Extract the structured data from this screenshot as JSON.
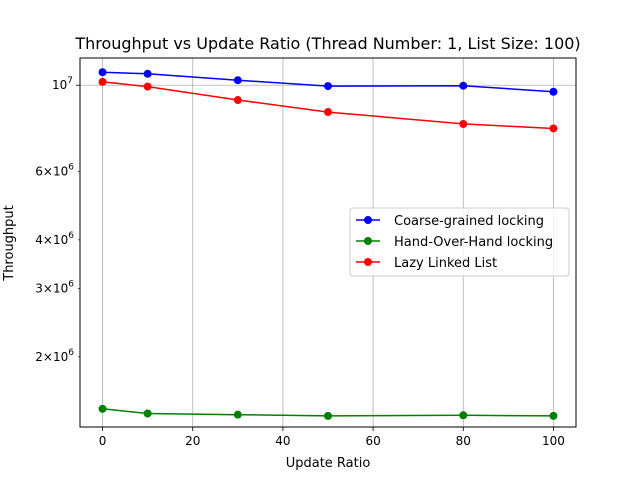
{
  "chart_data": {
    "type": "line",
    "title": "Throughput vs Update Ratio (Thread Number: 1, List Size: 100)",
    "xlabel": "Update Ratio",
    "ylabel": "Throughput",
    "y_scale": "log",
    "grid": "x-major and y-major (vertical lines at x ticks, horizontal line at 10^7)",
    "legend_position": "center-right",
    "xlim": [
      -5,
      105
    ],
    "ylim": [
      1320000,
      11750000
    ],
    "x_ticks": [
      {
        "value": 0,
        "label": "0"
      },
      {
        "value": 20,
        "label": "20"
      },
      {
        "value": 40,
        "label": "40"
      },
      {
        "value": 60,
        "label": "60"
      },
      {
        "value": 80,
        "label": "80"
      },
      {
        "value": 100,
        "label": "100"
      }
    ],
    "y_major_ticks": [
      {
        "value": 10000000,
        "base": "10",
        "exp": "7"
      }
    ],
    "y_minor_ticks": [
      {
        "value": 2000000,
        "mant": "2",
        "base": "10",
        "exp": "6"
      },
      {
        "value": 3000000,
        "mant": "3",
        "base": "10",
        "exp": "6"
      },
      {
        "value": 4000000,
        "mant": "4",
        "base": "10",
        "exp": "6"
      },
      {
        "value": 6000000,
        "mant": "6",
        "base": "10",
        "exp": "6"
      }
    ],
    "x": [
      0,
      10,
      30,
      50,
      80,
      100
    ],
    "series": [
      {
        "name": "Coarse-grained locking",
        "color": "#0000ff",
        "values": [
          10800000,
          10700000,
          10300000,
          9950000,
          9970000,
          9620000
        ]
      },
      {
        "name": "Hand-Over-Hand locking",
        "color": "#008000",
        "values": [
          1470000,
          1430000,
          1420000,
          1410000,
          1415000,
          1410000
        ]
      },
      {
        "name": "Lazy Linked List",
        "color": "#ff0000",
        "values": [
          10200000,
          9920000,
          9160000,
          8530000,
          7950000,
          7740000
        ]
      }
    ]
  }
}
